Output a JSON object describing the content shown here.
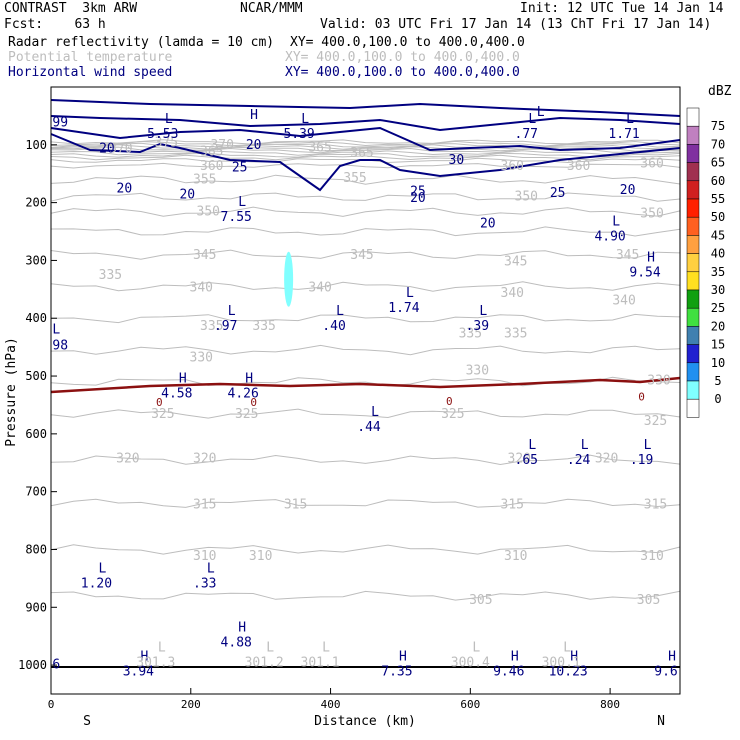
{
  "header": {
    "model": "CONTRAST  3km ARW",
    "org": "NCAR/MMM",
    "init": "Init: 12 UTC Tue 14 Jan 14",
    "fcst": "Fcst:    63 h",
    "valid": "Valid: 03 UTC Fri 17 Jan 14 (13 ChT Fri 17 Jan 14)"
  },
  "fields": [
    {
      "name": "Radar reflectivity (lamda = 10 cm)",
      "xy": "XY= 400.0,100.0 to 400.0,400.0",
      "color": "#000000"
    },
    {
      "name": "Potential temperature",
      "xy": "XY= 400.0,100.0 to 400.0,400.0",
      "color": "#bdbdbd"
    },
    {
      "name": "Horizontal wind speed",
      "xy": "XY= 400.0,100.0 to 400.0,400.0",
      "color": "#000080"
    }
  ],
  "chart_data": {
    "type": "contour cross-section",
    "xlabel": "Distance (km)",
    "ylabel": "Pressure (hPa)",
    "xlim": [
      0,
      900
    ],
    "ylim": [
      1050,
      0
    ],
    "x_ticks": [
      "0",
      "200",
      "400",
      "600",
      "800"
    ],
    "y_ticks": [
      "100",
      "200",
      "300",
      "400",
      "500",
      "600",
      "700",
      "800",
      "900",
      "1000"
    ],
    "x_ends": {
      "left": "S",
      "right": "N"
    },
    "colorbar": {
      "title": "dBZ",
      "labels": [
        "75",
        "70",
        "65",
        "60",
        "55",
        "50",
        "45",
        "40",
        "35",
        "30",
        "25",
        "20",
        "15",
        "10",
        "5",
        "0"
      ],
      "colors": [
        "#ffffff",
        "#c080c0",
        "#8030a0",
        "#a03050",
        "#d02020",
        "#ff2000",
        "#ff6020",
        "#ffa040",
        "#ffd040",
        "#ffe020",
        "#10a010",
        "#40e040",
        "#4080b0",
        "#2020d0",
        "#2090f0",
        "#80ffff",
        "#ffffff"
      ]
    },
    "reflectivity_cell": {
      "x": 340,
      "p_top": 285,
      "p_bottom": 380,
      "color": "#80ffff"
    },
    "theta_labels": [
      {
        "x": 100,
        "p": 106,
        "t": "370"
      },
      {
        "x": 165,
        "p": 96,
        "t": "375"
      },
      {
        "x": 230,
        "p": 112,
        "t": "365"
      },
      {
        "x": 245,
        "p": 100,
        "t": "370"
      },
      {
        "x": 230,
        "p": 137,
        "t": "360"
      },
      {
        "x": 385,
        "p": 105,
        "t": "365"
      },
      {
        "x": 445,
        "p": 114,
        "t": "365"
      },
      {
        "x": 660,
        "p": 137,
        "t": "360"
      },
      {
        "x": 755,
        "p": 137,
        "t": "360"
      },
      {
        "x": 860,
        "p": 132,
        "t": "360"
      },
      {
        "x": 220,
        "p": 160,
        "t": "355"
      },
      {
        "x": 435,
        "p": 157,
        "t": "355"
      },
      {
        "x": 680,
        "p": 189,
        "t": "350"
      },
      {
        "x": 225,
        "p": 215,
        "t": "350"
      },
      {
        "x": 860,
        "p": 219,
        "t": "350"
      },
      {
        "x": 220,
        "p": 291,
        "t": "345"
      },
      {
        "x": 445,
        "p": 291,
        "t": "345"
      },
      {
        "x": 665,
        "p": 302,
        "t": "345"
      },
      {
        "x": 825,
        "p": 291,
        "t": "345"
      },
      {
        "x": 215,
        "p": 347,
        "t": "340"
      },
      {
        "x": 385,
        "p": 347,
        "t": "340"
      },
      {
        "x": 660,
        "p": 356,
        "t": "340"
      },
      {
        "x": 820,
        "p": 369,
        "t": "340"
      },
      {
        "x": 85,
        "p": 325,
        "t": "335"
      },
      {
        "x": 230,
        "p": 413,
        "t": "335"
      },
      {
        "x": 305,
        "p": 413,
        "t": "335"
      },
      {
        "x": 600,
        "p": 426,
        "t": "335"
      },
      {
        "x": 665,
        "p": 426,
        "t": "335"
      },
      {
        "x": 215,
        "p": 468,
        "t": "330"
      },
      {
        "x": 610,
        "p": 490,
        "t": "330"
      },
      {
        "x": 870,
        "p": 508,
        "t": "330"
      },
      {
        "x": 160,
        "p": 566,
        "t": "325"
      },
      {
        "x": 280,
        "p": 566,
        "t": "325"
      },
      {
        "x": 575,
        "p": 566,
        "t": "325"
      },
      {
        "x": 865,
        "p": 578,
        "t": "325"
      },
      {
        "x": 110,
        "p": 643,
        "t": "320"
      },
      {
        "x": 220,
        "p": 643,
        "t": "320"
      },
      {
        "x": 670,
        "p": 643,
        "t": "320"
      },
      {
        "x": 795,
        "p": 643,
        "t": "320"
      },
      {
        "x": 220,
        "p": 722,
        "t": "315"
      },
      {
        "x": 350,
        "p": 722,
        "t": "315"
      },
      {
        "x": 660,
        "p": 722,
        "t": "315"
      },
      {
        "x": 865,
        "p": 722,
        "t": "315"
      },
      {
        "x": 220,
        "p": 811,
        "t": "310"
      },
      {
        "x": 300,
        "p": 811,
        "t": "310"
      },
      {
        "x": 665,
        "p": 811,
        "t": "310"
      },
      {
        "x": 860,
        "p": 811,
        "t": "310"
      },
      {
        "x": 615,
        "p": 887,
        "t": "305"
      },
      {
        "x": 855,
        "p": 887,
        "t": "305"
      }
    ],
    "wind_labels": [
      {
        "x": 80,
        "p": 106,
        "t": "20"
      },
      {
        "x": 290,
        "p": 100,
        "t": "20"
      },
      {
        "x": 270,
        "p": 139,
        "t": "25"
      },
      {
        "x": 580,
        "p": 126,
        "t": "30"
      },
      {
        "x": 525,
        "p": 181,
        "t": "25"
      },
      {
        "x": 105,
        "p": 176,
        "t": "20"
      },
      {
        "x": 195,
        "p": 186,
        "t": "20"
      },
      {
        "x": 525,
        "p": 192,
        "t": "20"
      },
      {
        "x": 625,
        "p": 236,
        "t": "20"
      },
      {
        "x": 725,
        "p": 183,
        "t": "25"
      },
      {
        "x": 825,
        "p": 178,
        "t": "20"
      }
    ],
    "freezing_labels": [
      {
        "x": 155,
        "p": 545,
        "t": "0"
      },
      {
        "x": 290,
        "p": 545,
        "t": "0"
      },
      {
        "x": 570,
        "p": 543,
        "t": "0"
      },
      {
        "x": 845,
        "p": 535,
        "t": "0"
      }
    ],
    "navy_hl": [
      {
        "x": 160,
        "p": 76,
        "l": "L",
        "v": "5.53"
      },
      {
        "x": 355,
        "p": 76,
        "l": "L",
        "v": "5.39"
      },
      {
        "x": 680,
        "p": 76,
        "l": "L",
        "v": ".77"
      },
      {
        "x": 820,
        "p": 76,
        "l": "L",
        "v": "1.71"
      },
      {
        "x": 265,
        "p": 220,
        "l": "L",
        "v": "7.55"
      },
      {
        "x": 800,
        "p": 253,
        "l": "L",
        "v": "4.90"
      },
      {
        "x": 850,
        "p": 316,
        "l": "H",
        "v": "9.54"
      },
      {
        "x": 505,
        "p": 377,
        "l": "L",
        "v": "1.74"
      },
      {
        "x": 250,
        "p": 408,
        "l": "L",
        "v": ".97"
      },
      {
        "x": 405,
        "p": 408,
        "l": "L",
        "v": ".40"
      },
      {
        "x": 610,
        "p": 408,
        "l": "L",
        "v": ".39"
      },
      {
        "x": 180,
        "p": 525,
        "l": "H",
        "v": "4.58"
      },
      {
        "x": 275,
        "p": 525,
        "l": "H",
        "v": "4.26"
      },
      {
        "x": 455,
        "p": 583,
        "l": "L",
        "v": ".44"
      },
      {
        "x": 680,
        "p": 640,
        "l": "L",
        "v": ".65"
      },
      {
        "x": 755,
        "p": 640,
        "l": "L",
        "v": ".24"
      },
      {
        "x": 845,
        "p": 640,
        "l": "L",
        "v": ".19"
      },
      {
        "x": 220,
        "p": 854,
        "l": "L",
        "v": ".33"
      },
      {
        "x": 65,
        "p": 854,
        "l": "L",
        "v": "1.20"
      },
      {
        "x": 265,
        "p": 956,
        "l": "H",
        "v": "4.88"
      },
      {
        "x": 125,
        "p": 1006,
        "l": "H",
        "v": "3.94"
      },
      {
        "x": 495,
        "p": 1006,
        "l": "H",
        "v": "7.35"
      },
      {
        "x": 655,
        "p": 1006,
        "l": "H",
        "v": "9.46"
      },
      {
        "x": 740,
        "p": 1006,
        "l": "H",
        "v": "10.23"
      },
      {
        "x": 880,
        "p": 1006,
        "l": "H",
        "v": "9.6"
      }
    ],
    "gray_hl": [
      {
        "x": 150,
        "p": 990,
        "l": "L",
        "v": "301.3"
      },
      {
        "x": 305,
        "p": 990,
        "l": "L",
        "v": "301.2"
      },
      {
        "x": 385,
        "p": 990,
        "l": "L",
        "v": "301.1"
      },
      {
        "x": 600,
        "p": 990,
        "l": "L",
        "v": "300.4"
      },
      {
        "x": 730,
        "p": 990,
        "l": "L",
        "v": "300.1"
      }
    ],
    "edge_labels": [
      {
        "x": 2,
        "p": 68,
        "t": "99"
      },
      {
        "x": 2,
        "p": 454,
        "t": "98"
      },
      {
        "x": 2,
        "p": 1006,
        "t": "6"
      },
      {
        "x": 2,
        "p": 426,
        "t": "L"
      },
      {
        "x": 285,
        "p": 55,
        "t": "H"
      },
      {
        "x": 695,
        "p": 50,
        "t": "L"
      }
    ]
  }
}
